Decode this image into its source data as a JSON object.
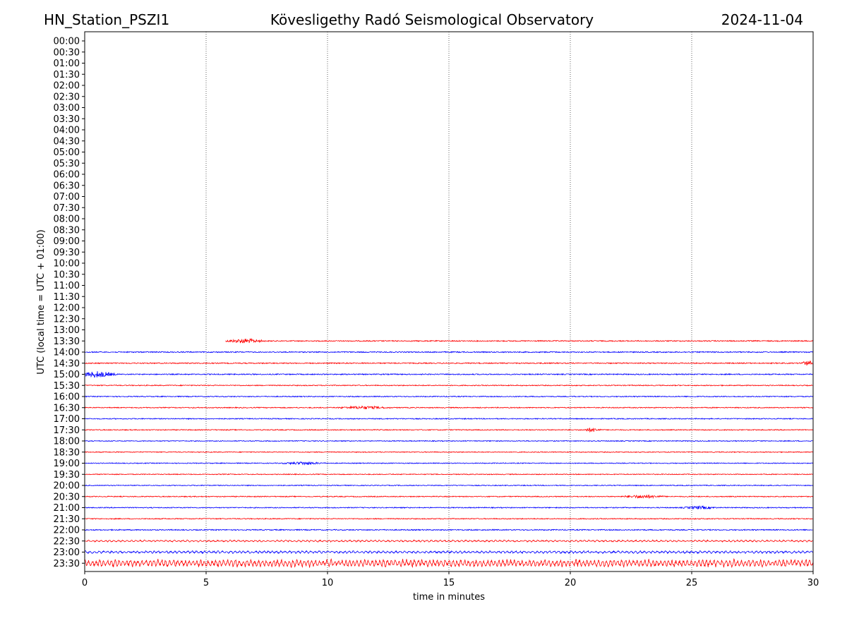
{
  "header": {
    "station": "HN_Station_PSZI1",
    "observatory": "Kövesligethy Radó Seismological Observatory",
    "date": "2024-11-04"
  },
  "chart_data": {
    "type": "line",
    "title": "Kövesligethy Radó Seismological Observatory",
    "xlabel": "time in minutes",
    "ylabel": "UTC (local time = UTC + 01:00)",
    "xlim": [
      0,
      30
    ],
    "xticks": [
      0,
      5,
      10,
      15,
      20,
      25,
      30
    ],
    "vertical_gridlines": [
      5,
      10,
      15,
      20,
      25
    ],
    "grid": "vertical dotted",
    "y_axis_inverted": true,
    "row_labels": [
      "00:00",
      "00:30",
      "01:00",
      "01:30",
      "02:00",
      "02:30",
      "03:00",
      "03:30",
      "04:00",
      "04:30",
      "05:00",
      "05:30",
      "06:00",
      "06:30",
      "07:00",
      "07:30",
      "08:00",
      "08:30",
      "09:00",
      "09:30",
      "10:00",
      "10:30",
      "11:00",
      "11:30",
      "12:00",
      "12:30",
      "13:00",
      "13:30",
      "14:00",
      "14:30",
      "15:00",
      "15:30",
      "16:00",
      "16:30",
      "17:00",
      "17:30",
      "18:00",
      "18:30",
      "19:00",
      "19:30",
      "20:00",
      "20:30",
      "21:00",
      "21:30",
      "22:00",
      "22:30",
      "23:00",
      "23:30"
    ],
    "colors": {
      "red": "#ff0000",
      "blue": "#0000ff"
    },
    "traces": [
      {
        "row": "13:30",
        "color": "red",
        "start_min": 5.8,
        "end_min": 30,
        "amplitude": 0.25,
        "bursts": [
          {
            "at": 6.6,
            "width": 0.9,
            "amp": 1.0
          }
        ]
      },
      {
        "row": "14:00",
        "color": "blue",
        "start_min": 0,
        "end_min": 30,
        "amplitude": 0.25,
        "bursts": []
      },
      {
        "row": "14:30",
        "color": "red",
        "start_min": 0,
        "end_min": 30,
        "amplitude": 0.25,
        "bursts": [
          {
            "at": 29.8,
            "width": 0.4,
            "amp": 1.0
          }
        ]
      },
      {
        "row": "15:00",
        "color": "blue",
        "start_min": 0,
        "end_min": 30,
        "amplitude": 0.25,
        "bursts": [
          {
            "at": 0.5,
            "width": 0.9,
            "amp": 1.4
          }
        ]
      },
      {
        "row": "15:30",
        "color": "red",
        "start_min": 0,
        "end_min": 30,
        "amplitude": 0.22,
        "bursts": []
      },
      {
        "row": "16:00",
        "color": "blue",
        "start_min": 0,
        "end_min": 30,
        "amplitude": 0.22,
        "bursts": []
      },
      {
        "row": "16:30",
        "color": "red",
        "start_min": 0,
        "end_min": 30,
        "amplitude": 0.22,
        "bursts": [
          {
            "at": 11.5,
            "width": 1.2,
            "amp": 0.6
          }
        ]
      },
      {
        "row": "17:00",
        "color": "blue",
        "start_min": 0,
        "end_min": 30,
        "amplitude": 0.22,
        "bursts": []
      },
      {
        "row": "17:30",
        "color": "red",
        "start_min": 0,
        "end_min": 30,
        "amplitude": 0.22,
        "bursts": [
          {
            "at": 20.9,
            "width": 0.4,
            "amp": 0.9
          }
        ]
      },
      {
        "row": "18:00",
        "color": "blue",
        "start_min": 0,
        "end_min": 30,
        "amplitude": 0.2,
        "bursts": []
      },
      {
        "row": "18:30",
        "color": "red",
        "start_min": 0,
        "end_min": 30,
        "amplitude": 0.2,
        "bursts": []
      },
      {
        "row": "19:00",
        "color": "blue",
        "start_min": 0,
        "end_min": 30,
        "amplitude": 0.2,
        "bursts": [
          {
            "at": 9.0,
            "width": 1.0,
            "amp": 0.6
          }
        ]
      },
      {
        "row": "19:30",
        "color": "red",
        "start_min": 0,
        "end_min": 30,
        "amplitude": 0.2,
        "bursts": []
      },
      {
        "row": "20:00",
        "color": "blue",
        "start_min": 0,
        "end_min": 30,
        "amplitude": 0.2,
        "bursts": []
      },
      {
        "row": "20:30",
        "color": "red",
        "start_min": 0,
        "end_min": 30,
        "amplitude": 0.22,
        "bursts": [
          {
            "at": 23.0,
            "width": 1.0,
            "amp": 0.7
          }
        ]
      },
      {
        "row": "21:00",
        "color": "blue",
        "start_min": 0,
        "end_min": 30,
        "amplitude": 0.22,
        "bursts": [
          {
            "at": 25.3,
            "width": 0.8,
            "amp": 0.6
          }
        ]
      },
      {
        "row": "21:30",
        "color": "red",
        "start_min": 0,
        "end_min": 30,
        "amplitude": 0.22,
        "bursts": []
      },
      {
        "row": "22:00",
        "color": "blue",
        "start_min": 0,
        "end_min": 30,
        "amplitude": 0.25,
        "bursts": []
      },
      {
        "row": "22:30",
        "color": "red",
        "start_min": 0,
        "end_min": 30,
        "amplitude": 0.45,
        "bursts": []
      },
      {
        "row": "23:00",
        "color": "blue",
        "start_min": 0,
        "end_min": 30,
        "amplitude": 0.6,
        "bursts": []
      },
      {
        "row": "23:30",
        "color": "red",
        "start_min": 0,
        "end_min": 30,
        "amplitude": 1.6,
        "bursts": []
      }
    ]
  }
}
